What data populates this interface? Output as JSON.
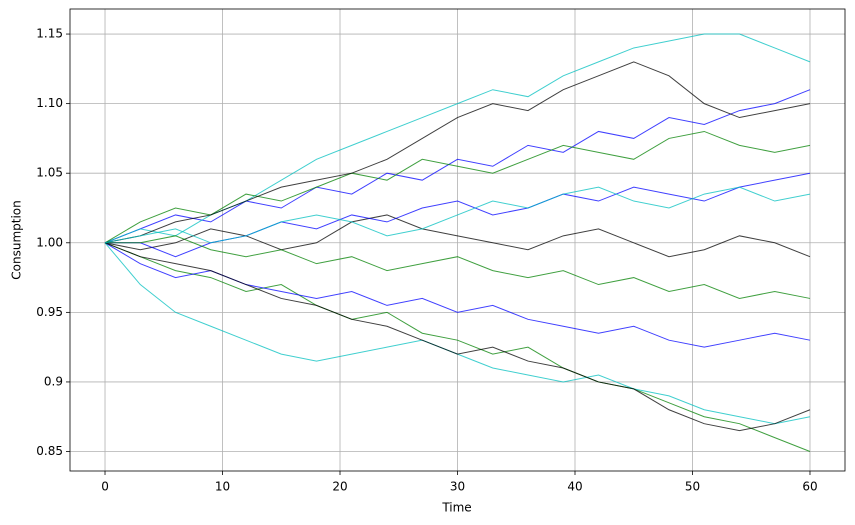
{
  "chart_data": {
    "type": "line",
    "xlabel": "Time",
    "ylabel": "Consumption",
    "x": [
      0,
      3,
      6,
      9,
      12,
      15,
      18,
      21,
      24,
      27,
      30,
      33,
      36,
      39,
      42,
      45,
      48,
      51,
      54,
      57,
      60
    ],
    "series": [
      {
        "color": "#0000ff",
        "values": [
          1,
          1.01,
          1.02,
          1.015,
          1.03,
          1.025,
          1.04,
          1.035,
          1.05,
          1.045,
          1.06,
          1.055,
          1.07,
          1.065,
          1.08,
          1.075,
          1.09,
          1.085,
          1.095,
          1.1,
          1.11
        ]
      },
      {
        "color": "#008000",
        "values": [
          1,
          0.99,
          0.98,
          0.975,
          0.965,
          0.97,
          0.955,
          0.945,
          0.95,
          0.935,
          0.93,
          0.92,
          0.925,
          0.91,
          0.9,
          0.895,
          0.885,
          0.875,
          0.87,
          0.86,
          0.85
        ]
      },
      {
        "color": "#00bfbf",
        "values": [
          1,
          1.01,
          1.005,
          1.02,
          1.03,
          1.045,
          1.06,
          1.07,
          1.08,
          1.09,
          1.1,
          1.11,
          1.105,
          1.12,
          1.13,
          1.14,
          1.145,
          1.15,
          1.15,
          1.14,
          1.13
        ]
      },
      {
        "color": "#000000",
        "values": [
          1,
          0.995,
          1.0,
          1.01,
          1.005,
          0.995,
          1.0,
          1.015,
          1.02,
          1.01,
          1.005,
          1.0,
          0.995,
          1.005,
          1.01,
          1.0,
          0.99,
          0.995,
          1.005,
          1.0,
          0.99
        ]
      },
      {
        "color": "#0000ff",
        "values": [
          1,
          0.985,
          0.975,
          0.98,
          0.97,
          0.965,
          0.96,
          0.965,
          0.955,
          0.96,
          0.95,
          0.955,
          0.945,
          0.94,
          0.935,
          0.94,
          0.93,
          0.925,
          0.93,
          0.935,
          0.93
        ]
      },
      {
        "color": "#008000",
        "values": [
          1,
          1.015,
          1.025,
          1.02,
          1.035,
          1.03,
          1.04,
          1.05,
          1.045,
          1.06,
          1.055,
          1.05,
          1.06,
          1.07,
          1.065,
          1.06,
          1.075,
          1.08,
          1.07,
          1.065,
          1.07
        ]
      },
      {
        "color": "#00bfbf",
        "values": [
          1,
          0.97,
          0.95,
          0.94,
          0.93,
          0.92,
          0.915,
          0.92,
          0.925,
          0.93,
          0.92,
          0.91,
          0.905,
          0.9,
          0.905,
          0.895,
          0.89,
          0.88,
          0.875,
          0.87,
          0.875
        ]
      },
      {
        "color": "#000000",
        "values": [
          1,
          1.005,
          1.015,
          1.02,
          1.03,
          1.04,
          1.045,
          1.05,
          1.06,
          1.075,
          1.09,
          1.1,
          1.095,
          1.11,
          1.12,
          1.13,
          1.12,
          1.1,
          1.09,
          1.095,
          1.1
        ]
      },
      {
        "color": "#0000ff",
        "values": [
          1,
          1.0,
          0.99,
          1.0,
          1.005,
          1.015,
          1.01,
          1.02,
          1.015,
          1.025,
          1.03,
          1.02,
          1.025,
          1.035,
          1.03,
          1.04,
          1.035,
          1.03,
          1.04,
          1.045,
          1.05
        ]
      },
      {
        "color": "#000000",
        "values": [
          1,
          0.99,
          0.985,
          0.98,
          0.97,
          0.96,
          0.955,
          0.945,
          0.94,
          0.93,
          0.92,
          0.925,
          0.915,
          0.91,
          0.9,
          0.895,
          0.88,
          0.87,
          0.865,
          0.87,
          0.88
        ]
      },
      {
        "color": "#008000",
        "values": [
          1,
          1.0,
          1.005,
          0.995,
          0.99,
          0.995,
          0.985,
          0.99,
          0.98,
          0.985,
          0.99,
          0.98,
          0.975,
          0.98,
          0.97,
          0.975,
          0.965,
          0.97,
          0.96,
          0.965,
          0.96
        ]
      },
      {
        "color": "#00bfbf",
        "values": [
          1,
          1.005,
          1.01,
          1.0,
          1.005,
          1.015,
          1.02,
          1.015,
          1.005,
          1.01,
          1.02,
          1.03,
          1.025,
          1.035,
          1.04,
          1.03,
          1.025,
          1.035,
          1.04,
          1.03,
          1.035
        ]
      }
    ],
    "xlim": [
      -2.98,
      62.98
    ],
    "xticks": [
      0,
      10,
      20,
      30,
      40,
      50,
      60
    ],
    "ylim": [
      0.836,
      1.168
    ],
    "yticks": [
      0.85,
      0.9,
      0.95,
      {
        "value": 1,
        "label": "1.00"
      },
      1.05,
      {
        "value": 1.1,
        "label": "1.10"
      },
      1.15
    ],
    "grid": true
  }
}
